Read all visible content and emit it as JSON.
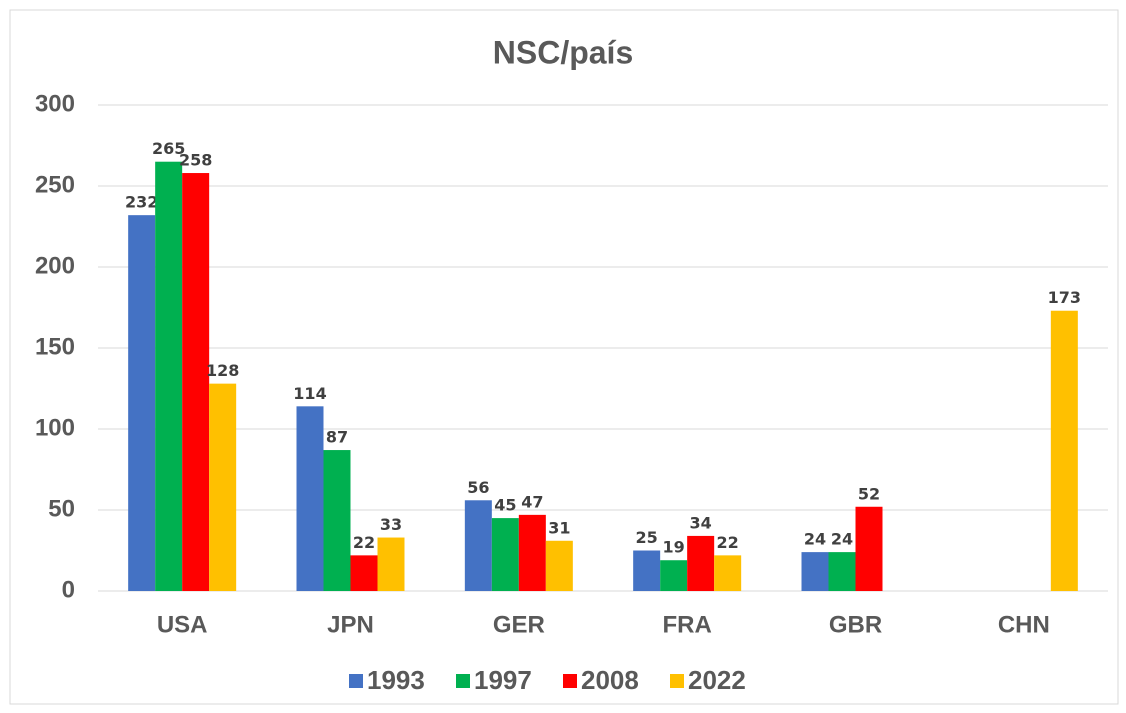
{
  "chart_data": {
    "type": "bar",
    "title": "NSC/país",
    "categories": [
      "USA",
      "JPN",
      "GER",
      "FRA",
      "GBR",
      "CHN"
    ],
    "series": [
      {
        "name": "1993",
        "color": "#4472c4",
        "values": [
          232,
          114,
          56,
          25,
          24,
          null
        ]
      },
      {
        "name": "1997",
        "color": "#00b050",
        "values": [
          265,
          87,
          45,
          19,
          24,
          null
        ]
      },
      {
        "name": "2008",
        "color": "#ff0000",
        "values": [
          258,
          22,
          47,
          34,
          52,
          null
        ]
      },
      {
        "name": "2022",
        "color": "#ffc000",
        "values": [
          128,
          33,
          31,
          22,
          null,
          173
        ]
      }
    ],
    "ylim": [
      0,
      300
    ],
    "yticks": [
      0,
      50,
      100,
      150,
      200,
      250,
      300
    ],
    "grid": true,
    "legend": "bottom"
  }
}
